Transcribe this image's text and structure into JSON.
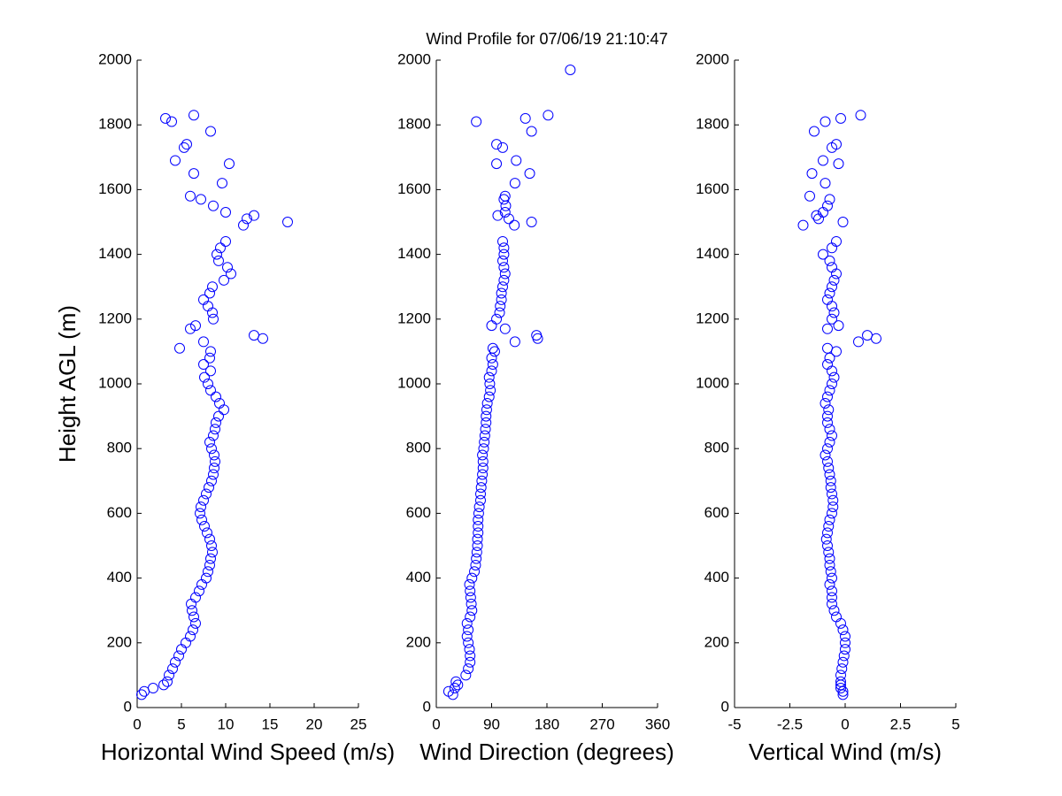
{
  "chart_data": [
    {
      "type": "scatter",
      "xlabel": "Horizontal Wind Speed (m/s)",
      "ylabel": "Height AGL (m)",
      "color": "#0000ff",
      "xlim": [
        0,
        25
      ],
      "xticks": [
        0,
        5,
        10,
        15,
        20,
        25
      ],
      "ylim": [
        0,
        2000
      ],
      "yticks": [
        0,
        200,
        400,
        600,
        800,
        1000,
        1200,
        1400,
        1600,
        1800,
        2000
      ],
      "x": [
        0.5,
        0.8,
        1.8,
        3,
        3.4,
        3.6,
        4,
        4.3,
        4.7,
        5,
        5.5,
        6,
        6.3,
        6.6,
        6.4,
        6.2,
        6.1,
        6.6,
        7,
        7.3,
        7.8,
        8,
        8.2,
        8.3,
        8.5,
        8.4,
        8.2,
        7.9,
        7.6,
        7.3,
        7.1,
        7.2,
        7.5,
        7.8,
        8.1,
        8.4,
        8.6,
        8.7,
        8.8,
        8.7,
        8.4,
        8.2,
        8.6,
        8.8,
        8.9,
        9.2,
        9.8,
        9.3,
        8.9,
        8.3,
        8,
        7.6,
        8.3,
        7.5,
        8.2,
        8.3,
        4.8,
        7.5,
        14.2,
        13.2,
        6,
        6.6,
        8.6,
        8.5,
        8,
        7.5,
        8.2,
        8.5,
        9.8,
        10.6,
        10.2,
        9.2,
        9,
        9.4,
        10,
        12,
        17,
        12.4,
        13.2,
        10,
        8.6,
        7.2,
        6,
        9.6,
        6.4,
        10.4,
        4.3,
        5.3,
        5.6,
        8.3,
        3.9,
        3.2,
        6.4
      ],
      "y": [
        40,
        50,
        60,
        70,
        80,
        100,
        120,
        140,
        160,
        180,
        200,
        220,
        240,
        260,
        280,
        300,
        320,
        340,
        360,
        380,
        400,
        420,
        440,
        460,
        480,
        500,
        520,
        540,
        560,
        580,
        600,
        620,
        640,
        660,
        680,
        700,
        720,
        740,
        760,
        780,
        800,
        820,
        840,
        860,
        880,
        900,
        920,
        940,
        960,
        980,
        1000,
        1020,
        1040,
        1060,
        1080,
        1100,
        1110,
        1130,
        1140,
        1150,
        1170,
        1180,
        1200,
        1220,
        1240,
        1260,
        1280,
        1300,
        1320,
        1340,
        1360,
        1380,
        1400,
        1420,
        1440,
        1490,
        1500,
        1510,
        1520,
        1530,
        1550,
        1570,
        1580,
        1620,
        1650,
        1680,
        1690,
        1730,
        1740,
        1780,
        1810,
        1820,
        1830
      ]
    },
    {
      "type": "scatter",
      "title": "Wind Profile for  07/06/19 21:10:47",
      "xlabel": "Wind Direction (degrees)",
      "color": "#0000ff",
      "xlim": [
        0,
        360
      ],
      "xticks": [
        0,
        90,
        180,
        270,
        360
      ],
      "ylim": [
        0,
        2000
      ],
      "yticks": [
        0,
        200,
        400,
        600,
        800,
        1000,
        1200,
        1400,
        1600,
        1800,
        2000
      ],
      "x": [
        27,
        20,
        30,
        35,
        32,
        48,
        52,
        55,
        55,
        54,
        52,
        50,
        52,
        50,
        55,
        58,
        57,
        56,
        55,
        54,
        58,
        62,
        64,
        65,
        66,
        67,
        67,
        68,
        68,
        68,
        69,
        70,
        72,
        72,
        73,
        74,
        75,
        76,
        76,
        75,
        77,
        78,
        79,
        80,
        81,
        81,
        82,
        83,
        86,
        88,
        87,
        86,
        90,
        92,
        90,
        95,
        92,
        128,
        165,
        163,
        112,
        90,
        98,
        103,
        104,
        106,
        106,
        108,
        110,
        112,
        110,
        108,
        110,
        110,
        108,
        127,
        155,
        118,
        100,
        112,
        113,
        110,
        112,
        128,
        152,
        98,
        130,
        108,
        98,
        155,
        65,
        145,
        182,
        218
      ],
      "y": [
        40,
        50,
        60,
        70,
        80,
        100,
        120,
        140,
        160,
        180,
        200,
        220,
        240,
        260,
        280,
        300,
        320,
        340,
        360,
        380,
        400,
        420,
        440,
        460,
        480,
        500,
        520,
        540,
        560,
        580,
        600,
        620,
        640,
        660,
        680,
        700,
        720,
        740,
        760,
        780,
        800,
        820,
        840,
        860,
        880,
        900,
        920,
        940,
        960,
        980,
        1000,
        1020,
        1040,
        1060,
        1080,
        1100,
        1110,
        1130,
        1140,
        1150,
        1170,
        1180,
        1200,
        1220,
        1240,
        1260,
        1280,
        1300,
        1320,
        1340,
        1360,
        1380,
        1400,
        1420,
        1440,
        1490,
        1500,
        1510,
        1520,
        1530,
        1550,
        1570,
        1580,
        1620,
        1650,
        1680,
        1690,
        1730,
        1740,
        1780,
        1810,
        1820,
        1830,
        1970
      ]
    },
    {
      "type": "scatter",
      "xlabel": "Vertical Wind (m/s)",
      "color": "#0000ff",
      "xlim": [
        -5,
        5
      ],
      "xticks": [
        -5,
        -2.5,
        0,
        2.5,
        5
      ],
      "ylim": [
        0,
        2000
      ],
      "yticks": [
        0,
        200,
        400,
        600,
        800,
        1000,
        1200,
        1400,
        1600,
        1800,
        2000
      ],
      "x": [
        -0.1,
        -0.1,
        -0.2,
        -0.2,
        -0.2,
        -0.2,
        -0.15,
        -0.1,
        -0.05,
        0,
        0,
        0,
        -0.1,
        -0.2,
        -0.4,
        -0.5,
        -0.6,
        -0.6,
        -0.6,
        -0.7,
        -0.6,
        -0.65,
        -0.7,
        -0.7,
        -0.75,
        -0.8,
        -0.85,
        -0.8,
        -0.75,
        -0.7,
        -0.6,
        -0.55,
        -0.55,
        -0.6,
        -0.65,
        -0.65,
        -0.7,
        -0.75,
        -0.8,
        -0.9,
        -0.8,
        -0.7,
        -0.6,
        -0.7,
        -0.8,
        -0.8,
        -0.75,
        -0.9,
        -0.8,
        -0.7,
        -0.6,
        -0.5,
        -0.6,
        -0.8,
        -0.7,
        -0.4,
        -0.8,
        0.6,
        1.4,
        1.0,
        -0.8,
        -0.3,
        -0.6,
        -0.5,
        -0.6,
        -0.8,
        -0.7,
        -0.6,
        -0.5,
        -0.4,
        -0.6,
        -0.7,
        -1.0,
        -0.6,
        -0.4,
        -1.9,
        -0.1,
        -1.2,
        -1.3,
        -1.0,
        -0.8,
        -0.7,
        -1.6,
        -0.9,
        -1.5,
        -0.3,
        -1.0,
        -0.6,
        -0.4,
        -1.4,
        -0.9,
        -0.2,
        0.7
      ],
      "y": [
        40,
        50,
        60,
        70,
        80,
        100,
        120,
        140,
        160,
        180,
        200,
        220,
        240,
        260,
        280,
        300,
        320,
        340,
        360,
        380,
        400,
        420,
        440,
        460,
        480,
        500,
        520,
        540,
        560,
        580,
        600,
        620,
        640,
        660,
        680,
        700,
        720,
        740,
        760,
        780,
        800,
        820,
        840,
        860,
        880,
        900,
        920,
        940,
        960,
        980,
        1000,
        1020,
        1040,
        1060,
        1080,
        1100,
        1110,
        1130,
        1140,
        1150,
        1170,
        1180,
        1200,
        1220,
        1240,
        1260,
        1280,
        1300,
        1320,
        1340,
        1360,
        1380,
        1400,
        1420,
        1440,
        1490,
        1500,
        1510,
        1520,
        1530,
        1550,
        1570,
        1580,
        1620,
        1650,
        1680,
        1690,
        1730,
        1740,
        1780,
        1810,
        1820,
        1830
      ]
    }
  ]
}
